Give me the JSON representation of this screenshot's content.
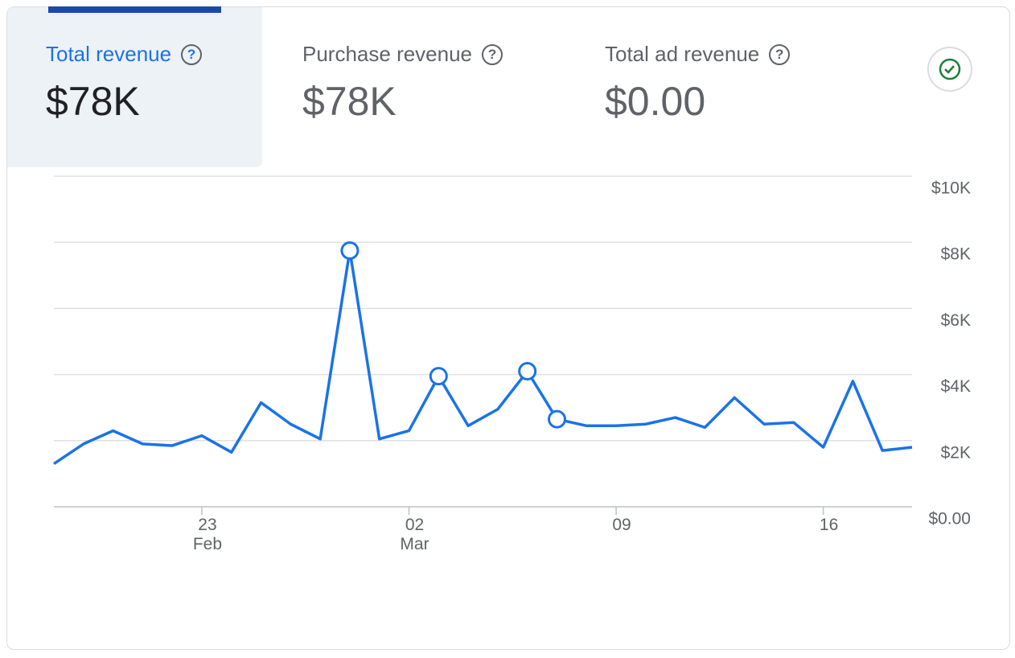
{
  "tabs": [
    {
      "label": "Total revenue",
      "value": "$78K"
    },
    {
      "label": "Purchase revenue",
      "value": "$78K"
    },
    {
      "label": "Total ad revenue",
      "value": "$0.00"
    }
  ],
  "chart_data": {
    "type": "line",
    "categories": [
      "18",
      "19",
      "20",
      "21",
      "22",
      "23\nFeb",
      "24",
      "25",
      "26",
      "27",
      "28",
      "01",
      "02\nMar",
      "03",
      "04",
      "05",
      "06",
      "07",
      "08",
      "09",
      "10",
      "11",
      "12",
      "13",
      "14",
      "15",
      "16",
      "17",
      "18",
      "19"
    ],
    "category_shown": [
      5,
      12,
      19,
      26
    ],
    "series": [
      {
        "name": "Total revenue",
        "color": "#1a73e8",
        "values": [
          1300,
          1900,
          2300,
          1900,
          1850,
          2150,
          1650,
          3150,
          2500,
          2050,
          7750,
          2050,
          2300,
          3950,
          2450,
          2950,
          4100,
          2650,
          2450,
          2450,
          2500,
          2700,
          2400,
          3300,
          2500,
          2550,
          1800,
          3800,
          1700,
          1800
        ],
        "highlighted_points": [
          10,
          13,
          16,
          17
        ]
      }
    ],
    "ylim": [
      0,
      10000
    ],
    "yticks": [
      {
        "value": 0,
        "label": "$0.00"
      },
      {
        "value": 2000,
        "label": "$2K"
      },
      {
        "value": 4000,
        "label": "$4K"
      },
      {
        "value": 6000,
        "label": "$6K"
      },
      {
        "value": 8000,
        "label": "$8K"
      },
      {
        "value": 10000,
        "label": "$10K"
      }
    ],
    "grid": true
  }
}
